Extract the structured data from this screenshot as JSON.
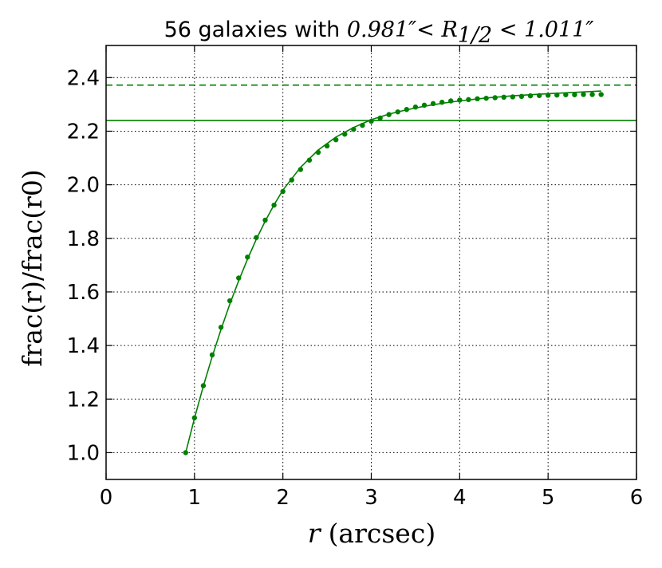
{
  "chart_data": {
    "type": "scatter",
    "title": "56 galaxies with ",
    "title_math": "0.981″< R",
    "title_math_sub": "1/2",
    "title_math_tail": " < 1.011″",
    "xlabel_var": "r",
    "xlabel_unit": "(arcsec)",
    "ylabel": "frac(r)/frac(r0)",
    "xlim": [
      0,
      6
    ],
    "ylim": [
      0.9,
      2.52
    ],
    "xticks": [
      0,
      1,
      2,
      3,
      4,
      5,
      6
    ],
    "xtick_labels": [
      "0",
      "1",
      "2",
      "3",
      "4",
      "5",
      "6"
    ],
    "yticks": [
      1.0,
      1.2,
      1.4,
      1.6,
      1.8,
      2.0,
      2.2,
      2.4
    ],
    "ytick_labels": [
      "1.0",
      "1.2",
      "1.4",
      "1.6",
      "1.8",
      "2.0",
      "2.2",
      "2.4"
    ],
    "grid": true,
    "color": "#008000",
    "hlines": [
      {
        "y": 2.372,
        "style": "dashed"
      },
      {
        "y": 2.24,
        "style": "solid"
      }
    ],
    "series": [
      {
        "kind": "points",
        "x": [
          0.9,
          1.0,
          1.1,
          1.2,
          1.3,
          1.4,
          1.5,
          1.6,
          1.7,
          1.8,
          1.9,
          2.0,
          2.1,
          2.2,
          2.3,
          2.4,
          2.5,
          2.6,
          2.7,
          2.8,
          2.9,
          3.0,
          3.1,
          3.2,
          3.3,
          3.4,
          3.5,
          3.6,
          3.7,
          3.8,
          3.9,
          4.0,
          4.1,
          4.2,
          4.3,
          4.4,
          4.5,
          4.6,
          4.7,
          4.8,
          4.9,
          5.0,
          5.1,
          5.2,
          5.3,
          5.4,
          5.5,
          5.6
        ],
        "y": [
          1.0,
          1.13,
          1.25,
          1.365,
          1.468,
          1.567,
          1.652,
          1.73,
          1.803,
          1.868,
          1.924,
          1.975,
          2.018,
          2.057,
          2.092,
          2.121,
          2.145,
          2.168,
          2.189,
          2.207,
          2.222,
          2.237,
          2.249,
          2.262,
          2.272,
          2.281,
          2.29,
          2.297,
          2.303,
          2.308,
          2.313,
          2.316,
          2.318,
          2.321,
          2.323,
          2.325,
          2.327,
          2.328,
          2.33,
          2.332,
          2.333,
          2.334,
          2.335,
          2.336,
          2.336,
          2.337,
          2.337,
          2.337
        ]
      },
      {
        "kind": "fit",
        "x": [
          0.9,
          1.0,
          1.1,
          1.2,
          1.3,
          1.4,
          1.5,
          1.6,
          1.7,
          1.8,
          1.9,
          2.0,
          2.2,
          2.4,
          2.6,
          2.8,
          3.0,
          3.2,
          3.4,
          3.6,
          3.8,
          4.0,
          4.3,
          4.6,
          5.0,
          5.3,
          5.6
        ],
        "y": [
          1.0,
          1.128,
          1.248,
          1.358,
          1.46,
          1.555,
          1.642,
          1.722,
          1.797,
          1.864,
          1.925,
          1.98,
          2.065,
          2.13,
          2.178,
          2.214,
          2.243,
          2.264,
          2.28,
          2.293,
          2.304,
          2.313,
          2.324,
          2.332,
          2.34,
          2.345,
          2.35
        ]
      }
    ]
  }
}
